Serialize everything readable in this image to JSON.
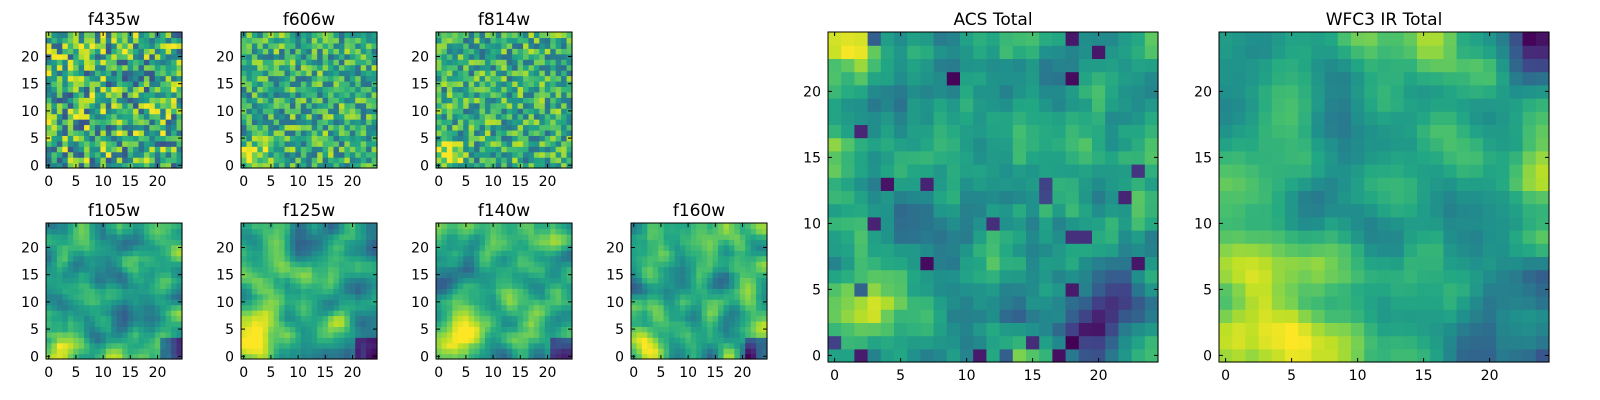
{
  "figure": {
    "colormap": "viridis",
    "pixel_grid": [
      25,
      25
    ]
  },
  "chart_data": [
    {
      "id": "f435w",
      "type": "heatmap",
      "title": "f435w",
      "xlim": [
        0,
        24
      ],
      "ylim": [
        0,
        24
      ],
      "xticks": [
        0,
        5,
        10,
        15,
        20
      ],
      "yticks": [
        0,
        5,
        10,
        15,
        20
      ],
      "cols": 25,
      "rows": 25,
      "pattern": "noise-fine",
      "contrast": 0.95,
      "seed": 11
    },
    {
      "id": "f606w",
      "type": "heatmap",
      "title": "f606w",
      "xlim": [
        0,
        24
      ],
      "ylim": [
        0,
        24
      ],
      "xticks": [
        0,
        5,
        10,
        15,
        20
      ],
      "yticks": [
        0,
        5,
        10,
        15,
        20
      ],
      "cols": 25,
      "rows": 25,
      "pattern": "noise-corner",
      "contrast": 0.9,
      "seed": 23
    },
    {
      "id": "f814w",
      "type": "heatmap",
      "title": "f814w",
      "xlim": [
        0,
        24
      ],
      "ylim": [
        0,
        24
      ],
      "xticks": [
        0,
        5,
        10,
        15,
        20
      ],
      "yticks": [
        0,
        5,
        10,
        15,
        20
      ],
      "cols": 25,
      "rows": 25,
      "pattern": "noise-corner",
      "contrast": 0.9,
      "seed": 37
    },
    {
      "id": "f105w",
      "type": "heatmap",
      "title": "f105w",
      "xlim": [
        0,
        24
      ],
      "ylim": [
        0,
        24
      ],
      "xticks": [
        0,
        5,
        10,
        15,
        20
      ],
      "yticks": [
        0,
        5,
        10,
        15,
        20
      ],
      "cols": 25,
      "rows": 25,
      "pattern": "smooth",
      "contrast": 0.8,
      "seed": 41
    },
    {
      "id": "f125w",
      "type": "heatmap",
      "title": "f125w",
      "xlim": [
        0,
        24
      ],
      "ylim": [
        0,
        24
      ],
      "xticks": [
        0,
        5,
        10,
        15,
        20
      ],
      "yticks": [
        0,
        5,
        10,
        15,
        20
      ],
      "cols": 25,
      "rows": 25,
      "pattern": "smooth",
      "contrast": 0.8,
      "seed": 53
    },
    {
      "id": "f140w",
      "type": "heatmap",
      "title": "f140w",
      "xlim": [
        0,
        24
      ],
      "ylim": [
        0,
        24
      ],
      "xticks": [
        0,
        5,
        10,
        15,
        20
      ],
      "yticks": [
        0,
        5,
        10,
        15,
        20
      ],
      "cols": 25,
      "rows": 25,
      "pattern": "smooth",
      "contrast": 0.8,
      "seed": 67
    },
    {
      "id": "f160w",
      "type": "heatmap",
      "title": "f160w",
      "xlim": [
        0,
        24
      ],
      "ylim": [
        0,
        24
      ],
      "xticks": [
        0,
        5,
        10,
        15,
        20
      ],
      "yticks": [
        0,
        5,
        10,
        15,
        20
      ],
      "cols": 25,
      "rows": 25,
      "pattern": "smooth",
      "contrast": 0.8,
      "seed": 79
    },
    {
      "id": "acs-total",
      "type": "heatmap",
      "title": "ACS Total",
      "xlim": [
        0,
        24
      ],
      "ylim": [
        0,
        24
      ],
      "xticks": [
        0,
        5,
        10,
        15,
        20
      ],
      "yticks": [
        0,
        5,
        10,
        15,
        20
      ],
      "cols": 25,
      "rows": 25,
      "pattern": "acs",
      "contrast": 0.85,
      "seed": 91
    },
    {
      "id": "wfc3-ir-total",
      "type": "heatmap",
      "title": "WFC3 IR Total",
      "xlim": [
        0,
        24
      ],
      "ylim": [
        0,
        24
      ],
      "xticks": [
        0,
        5,
        10,
        15,
        20
      ],
      "yticks": [
        0,
        5,
        10,
        15,
        20
      ],
      "cols": 25,
      "rows": 25,
      "pattern": "ir",
      "contrast": 0.8,
      "seed": 103
    }
  ]
}
